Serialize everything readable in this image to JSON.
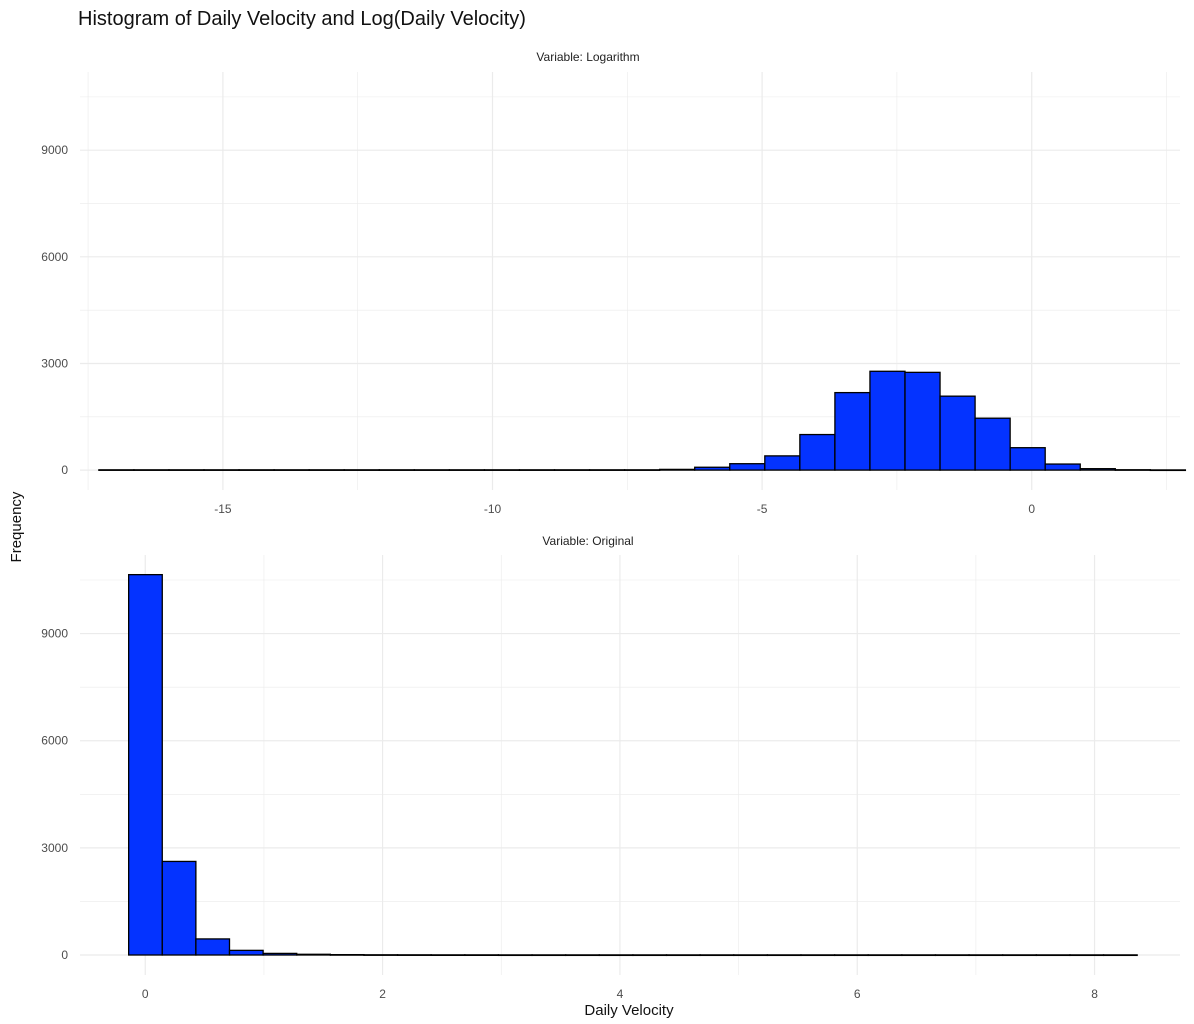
{
  "title": "Histogram of Daily Velocity and Log(Daily Velocity)",
  "ylabel": "Frequency",
  "xlabel": "Daily Velocity",
  "colors": {
    "fill": "#0433ff",
    "outline": "#000000",
    "grid": "#ebebeb"
  },
  "chart_data": [
    {
      "type": "bar",
      "facet": "Variable: Logarithm",
      "x_ticks": [
        -15,
        -10,
        -5,
        0
      ],
      "y_ticks": [
        0,
        3000,
        6000,
        9000
      ],
      "xlim": [
        -17.65,
        2.75
      ],
      "ylim": [
        -560,
        11200
      ],
      "bin_start": -17.3,
      "bin_width": 0.65,
      "values": [
        8,
        8,
        8,
        8,
        8,
        8,
        8,
        8,
        8,
        8,
        8,
        8,
        8,
        8,
        8,
        8,
        20,
        80,
        180,
        400,
        1000,
        2180,
        2780,
        2750,
        2080,
        1460,
        630,
        170,
        40,
        10,
        5
      ]
    },
    {
      "type": "bar",
      "facet": "Variable: Original",
      "x_ticks": [
        0,
        2,
        4,
        6,
        8
      ],
      "y_ticks": [
        0,
        3000,
        6000,
        9000
      ],
      "xlim": [
        -0.55,
        8.72
      ],
      "ylim": [
        -560,
        11200
      ],
      "bin_start": -0.14,
      "bin_width": 0.2833,
      "values": [
        10650,
        2620,
        450,
        130,
        45,
        20,
        10,
        6,
        5,
        4,
        4,
        3,
        3,
        3,
        3,
        3,
        3,
        3,
        3,
        3,
        3,
        3,
        3,
        3,
        3,
        3,
        3,
        3,
        3,
        3
      ]
    }
  ]
}
